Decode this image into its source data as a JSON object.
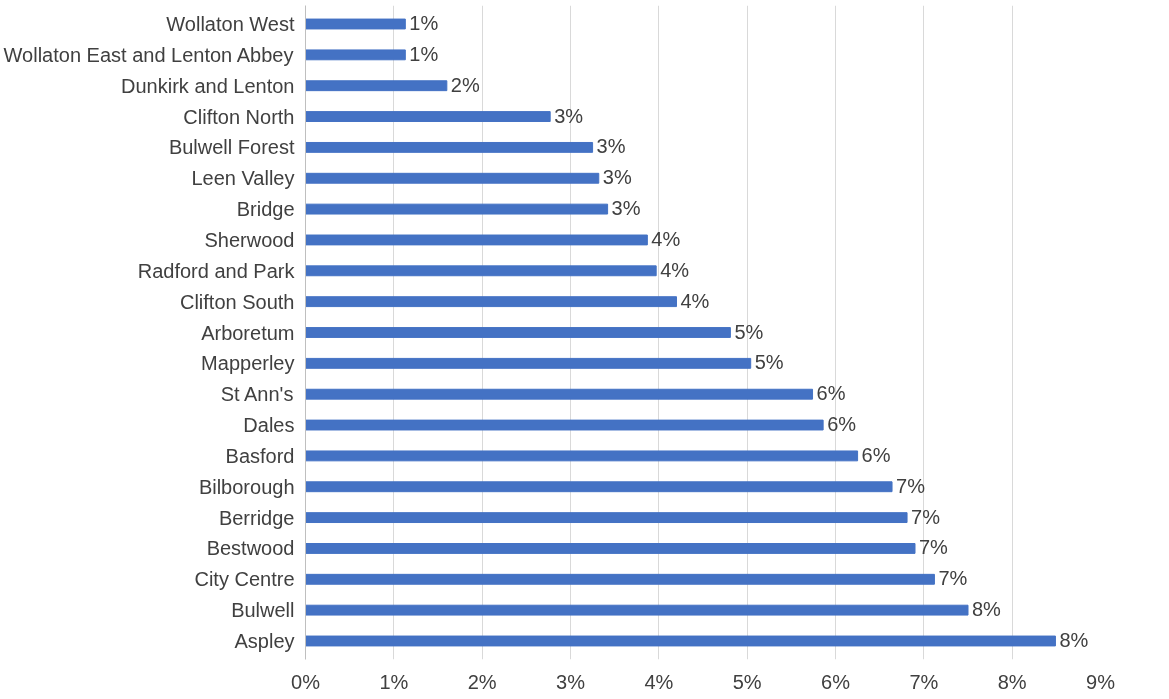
{
  "chart_data": {
    "type": "bar",
    "orientation": "horizontal",
    "categories": [
      "Wollaton West",
      "Wollaton East and Lenton Abbey",
      "Dunkirk and Lenton",
      "Clifton North",
      "Bulwell Forest",
      "Leen Valley",
      "Bridge",
      "Sherwood",
      "Radford and Park",
      "Clifton South",
      "Arboretum",
      "Mapperley",
      "St Ann's",
      "Dales",
      "Basford",
      "Bilborough",
      "Berridge",
      "Bestwood",
      "City Centre",
      "Bulwell",
      "Aspley"
    ],
    "values": [
      1.13,
      1.13,
      1.6,
      2.77,
      3.25,
      3.32,
      3.42,
      3.87,
      3.97,
      4.2,
      4.81,
      5.04,
      5.74,
      5.86,
      6.25,
      6.64,
      6.81,
      6.9,
      7.12,
      7.5,
      8.49
    ],
    "value_labels": [
      "1%",
      "1%",
      "2%",
      "3%",
      "3%",
      "3%",
      "3%",
      "4%",
      "4%",
      "4%",
      "5%",
      "5%",
      "6%",
      "6%",
      "6%",
      "7%",
      "7%",
      "7%",
      "7%",
      "8%",
      "8%"
    ],
    "color": "#4472c4",
    "xlim": [
      0,
      9
    ],
    "xticks": [
      {
        "value": 0,
        "label": "0%"
      },
      {
        "value": 1,
        "label": "1%"
      },
      {
        "value": 2,
        "label": "2%"
      },
      {
        "value": 3,
        "label": "3%"
      },
      {
        "value": 4,
        "label": "4%"
      },
      {
        "value": 5,
        "label": "5%"
      },
      {
        "value": 6,
        "label": "6%"
      },
      {
        "value": 7,
        "label": "7%"
      },
      {
        "value": 8,
        "label": "8%"
      },
      {
        "value": 9,
        "label": "9%"
      }
    ],
    "grid": "x"
  }
}
